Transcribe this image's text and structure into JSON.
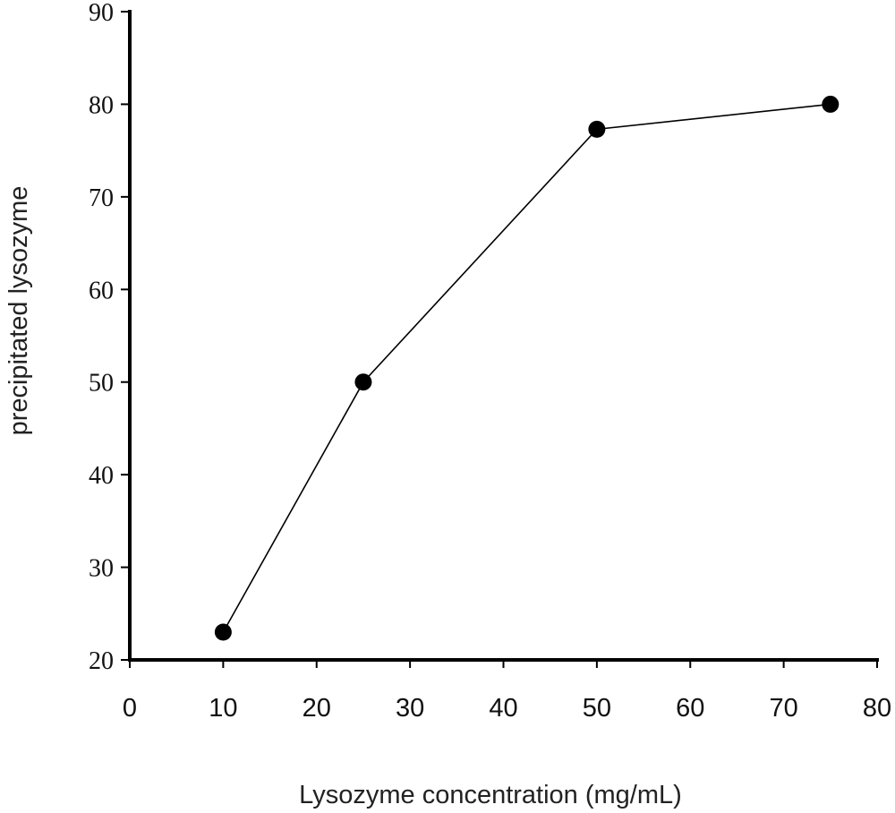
{
  "chart_data": {
    "type": "line",
    "title": "",
    "xlabel": "Lysozyme concentration (mg/mL)",
    "ylabel": "precipitated lysozyme",
    "xlim": [
      0,
      80
    ],
    "ylim": [
      20,
      90
    ],
    "x_ticks": [
      "0",
      "10",
      "20",
      "30",
      "40",
      "50",
      "60",
      "70",
      "80"
    ],
    "y_ticks": [
      "20",
      "30",
      "40",
      "50",
      "60",
      "70",
      "80",
      "90"
    ],
    "grid": false,
    "legend": "none",
    "series": [
      {
        "x": [
          10,
          25,
          50,
          75
        ],
        "y": [
          23,
          50,
          77.3,
          80
        ],
        "color": "#000000",
        "marker": "filled-circle"
      }
    ]
  }
}
